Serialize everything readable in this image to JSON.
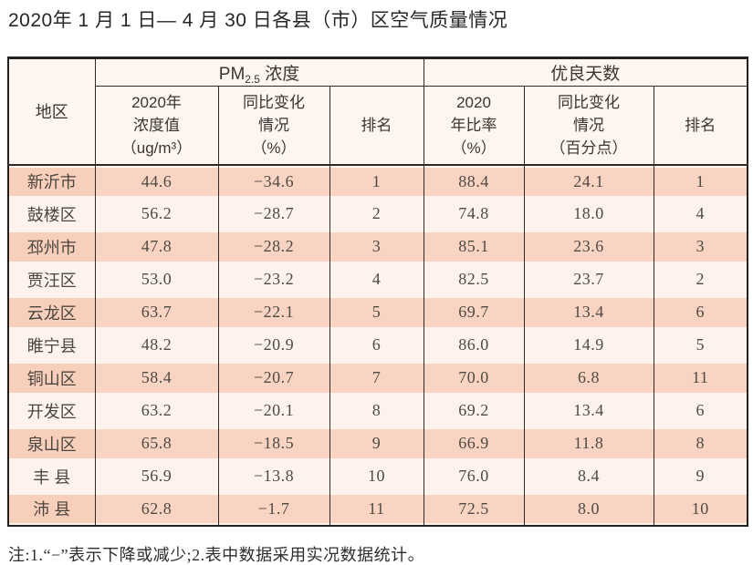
{
  "title": "2020年 1 月 1 日— 4 月 30 日各县（市）区空气质量情况",
  "note": "注:1.“−”表示下降或减少;2.表中数据采用实况数据统计。",
  "colors": {
    "stripe_salmon": "#f9d4c2",
    "row_cream": "#fdf3ec",
    "header_cream": "#fdf5ef",
    "border_dark": "#2e2a28",
    "text_dark": "#4f4a44"
  },
  "table": {
    "headers": {
      "region": "地区",
      "pm_group": {
        "prefix": "PM",
        "sub": "2.5",
        "suffix": " 浓度"
      },
      "good_group": "优良天数",
      "pm_value": "2020年\n浓度值\n（ug/m³）",
      "pm_change": "同比变化\n情况\n（%）",
      "pm_rank": "排名",
      "good_ratio": "2020\n年比率\n（%）",
      "good_change": "同比变化\n情况\n（百分点）",
      "good_rank": "排名"
    },
    "rows": [
      [
        "新沂市",
        "44.6",
        "−34.6",
        "1",
        "88.4",
        "24.1",
        "1"
      ],
      [
        "鼓楼区",
        "56.2",
        "−28.7",
        "2",
        "74.8",
        "18.0",
        "4"
      ],
      [
        "邳州市",
        "47.8",
        "−28.2",
        "3",
        "85.1",
        "23.6",
        "3"
      ],
      [
        "贾汪区",
        "53.0",
        "−23.2",
        "4",
        "82.5",
        "23.7",
        "2"
      ],
      [
        "云龙区",
        "63.7",
        "−22.1",
        "5",
        "69.7",
        "13.4",
        "6"
      ],
      [
        "睢宁县",
        "48.2",
        "−20.9",
        "6",
        "86.0",
        "14.9",
        "5"
      ],
      [
        "铜山区",
        "58.4",
        "−20.7",
        "7",
        "70.0",
        "6.8",
        "11"
      ],
      [
        "开发区",
        "63.2",
        "−20.1",
        "8",
        "69.2",
        "13.4",
        "6"
      ],
      [
        "泉山区",
        "65.8",
        "−18.5",
        "9",
        "66.9",
        "11.8",
        "8"
      ],
      [
        "丰 县",
        "56.9",
        "−13.8",
        "10",
        "76.0",
        "8.4",
        "9"
      ],
      [
        "沛 县",
        "62.8",
        "−1.7",
        "11",
        "72.5",
        "8.0",
        "10"
      ]
    ]
  }
}
